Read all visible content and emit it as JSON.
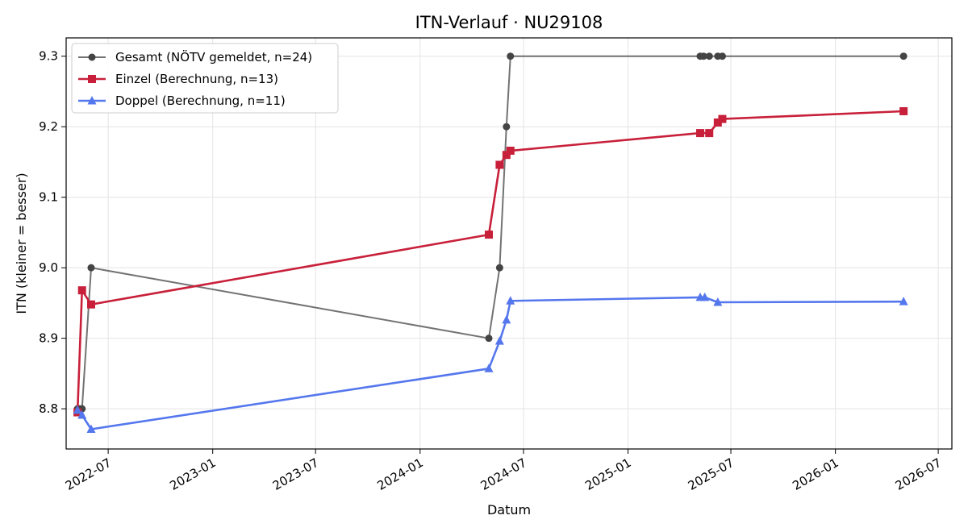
{
  "chart_data": {
    "type": "line",
    "title": "ITN-Verlauf · NU29108",
    "xlabel": "Datum",
    "ylabel": "ITN  (kleiner = besser)",
    "xaxis": {
      "type": "date",
      "range": [
        "2022-04-18",
        "2026-07-25"
      ],
      "ticks": [
        "2022-07-01",
        "2023-01-01",
        "2023-07-01",
        "2024-01-01",
        "2024-07-01",
        "2025-01-01",
        "2025-07-01",
        "2026-01-01",
        "2026-07-01"
      ],
      "tick_labels": [
        "2022-07",
        "2023-01",
        "2023-07",
        "2024-01",
        "2024-07",
        "2025-01",
        "2025-07",
        "2026-01",
        "2026-07"
      ]
    },
    "yaxis": {
      "range": [
        8.743,
        9.326
      ],
      "ticks": [
        8.8,
        8.9,
        9.0,
        9.1,
        9.2,
        9.3
      ],
      "tick_labels": [
        "8.8",
        "8.9",
        "9.0",
        "9.1",
        "9.2",
        "9.3"
      ]
    },
    "grid": true,
    "legend_position": "top-left",
    "series": [
      {
        "name": "Gesamt (NÖTV gemeldet, n=24)",
        "color": "#444444",
        "marker": "circle",
        "points": [
          [
            "2022-05-08",
            8.8
          ],
          [
            "2022-05-12",
            8.8
          ],
          [
            "2022-05-16",
            8.8
          ],
          [
            "2022-06-01",
            9.0
          ],
          [
            "2024-05-01",
            8.9
          ],
          [
            "2024-05-20",
            9.0
          ],
          [
            "2024-06-01",
            9.2
          ],
          [
            "2024-06-08",
            9.3
          ],
          [
            "2025-05-08",
            9.3
          ],
          [
            "2025-05-14",
            9.3
          ],
          [
            "2025-05-24",
            9.3
          ],
          [
            "2025-06-08",
            9.3
          ],
          [
            "2025-06-16",
            9.3
          ],
          [
            "2026-05-01",
            9.3
          ]
        ]
      },
      {
        "name": "Einzel (Berechnung, n=13)",
        "color": "#c8203a",
        "marker": "square",
        "points": [
          [
            "2022-05-08",
            8.795
          ],
          [
            "2022-05-16",
            8.968
          ],
          [
            "2022-06-01",
            8.948
          ],
          [
            "2024-05-01",
            9.047
          ],
          [
            "2024-05-20",
            9.146
          ],
          [
            "2024-06-01",
            9.16
          ],
          [
            "2024-06-08",
            9.166
          ],
          [
            "2025-05-08",
            9.191
          ],
          [
            "2025-05-24",
            9.191
          ],
          [
            "2025-06-08",
            9.206
          ],
          [
            "2025-06-16",
            9.211
          ],
          [
            "2026-05-01",
            9.222
          ]
        ]
      },
      {
        "name": "Doppel (Berechnung, n=11)",
        "color": "#5577ee",
        "marker": "triangle",
        "points": [
          [
            "2022-05-08",
            8.798
          ],
          [
            "2022-05-16",
            8.791
          ],
          [
            "2022-06-01",
            8.771
          ],
          [
            "2024-05-01",
            8.857
          ],
          [
            "2024-05-20",
            8.896
          ],
          [
            "2024-06-01",
            8.926
          ],
          [
            "2024-06-08",
            8.953
          ],
          [
            "2025-05-08",
            8.958
          ],
          [
            "2025-05-16",
            8.958
          ],
          [
            "2025-06-08",
            8.951
          ],
          [
            "2026-05-01",
            8.952
          ]
        ]
      }
    ]
  }
}
